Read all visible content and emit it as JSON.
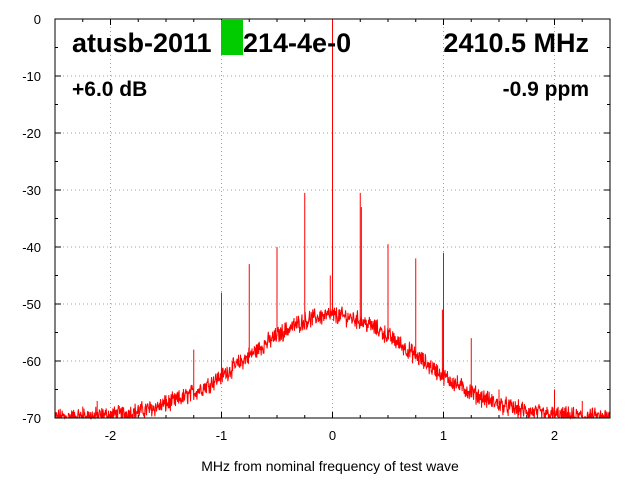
{
  "chart_data": {
    "type": "line",
    "title": "",
    "xlabel": "MHz from nominal frequency of test wave",
    "ylabel": "",
    "xlim": [
      -2.5,
      2.5
    ],
    "ylim": [
      -70,
      0
    ],
    "x_ticks": [
      -2,
      -1,
      0,
      1,
      2
    ],
    "y_ticks": [
      0,
      -10,
      -20,
      -30,
      -40,
      -50,
      -60,
      -70
    ],
    "grid": true,
    "series_color": "#ff0000",
    "noise_floor": {
      "shape": "bell",
      "peak_db": -52,
      "floor_db": -70,
      "center_mhz": 0,
      "sigma_mhz": 0.75
    },
    "spurs": [
      {
        "x": -2.25,
        "y": -68
      },
      {
        "x": -2.12,
        "y": -67
      },
      {
        "x": -1.75,
        "y": -68
      },
      {
        "x": -1.5,
        "y": -66
      },
      {
        "x": -1.25,
        "y": -58
      },
      {
        "x": -1.0,
        "y": -48
      },
      {
        "x": -0.75,
        "y": -43
      },
      {
        "x": -0.5,
        "y": -40
      },
      {
        "x": -0.25,
        "y": -30.5
      },
      {
        "x": -0.02,
        "y": -45
      },
      {
        "x": 0.0,
        "y": 0
      },
      {
        "x": 0.25,
        "y": -30.5
      },
      {
        "x": 0.26,
        "y": -33
      },
      {
        "x": 0.5,
        "y": -39.5
      },
      {
        "x": 0.75,
        "y": -42
      },
      {
        "x": 1.0,
        "y": -41
      },
      {
        "x": 0.99,
        "y": -51
      },
      {
        "x": 1.25,
        "y": -56
      },
      {
        "x": 1.5,
        "y": -65
      },
      {
        "x": 2.0,
        "y": -65
      },
      {
        "x": 2.25,
        "y": -67
      }
    ]
  },
  "header": {
    "device_id": "atusb-2011",
    "device_suffix": "214-4e-0",
    "frequency": "2410.5 MHz",
    "gain": "+6.0 dB",
    "ppm": "-0.9 ppm",
    "indicator_color": "#00cc00"
  }
}
